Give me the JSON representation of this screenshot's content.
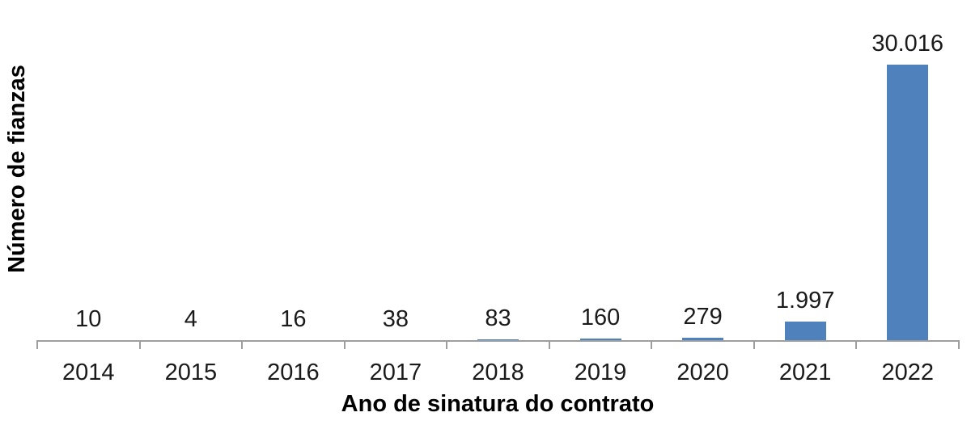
{
  "chart_data": {
    "type": "bar",
    "title": "",
    "xlabel": "Ano de sinatura do contrato",
    "ylabel": "Número de fianzas",
    "categories": [
      "2014",
      "2015",
      "2016",
      "2017",
      "2018",
      "2019",
      "2020",
      "2021",
      "2022"
    ],
    "values": [
      10,
      4,
      16,
      38,
      83,
      160,
      279,
      1997,
      30016
    ],
    "value_labels": [
      "10",
      "4",
      "16",
      "38",
      "83",
      "160",
      "279",
      "1.997",
      "30.016"
    ],
    "ylim": [
      0,
      30016
    ],
    "grid": false,
    "legend": false,
    "colors": {
      "bar": "#4F81BD",
      "axis": "#9E9E9E",
      "text": "#1a1a1a",
      "title_text": "#000000"
    }
  }
}
